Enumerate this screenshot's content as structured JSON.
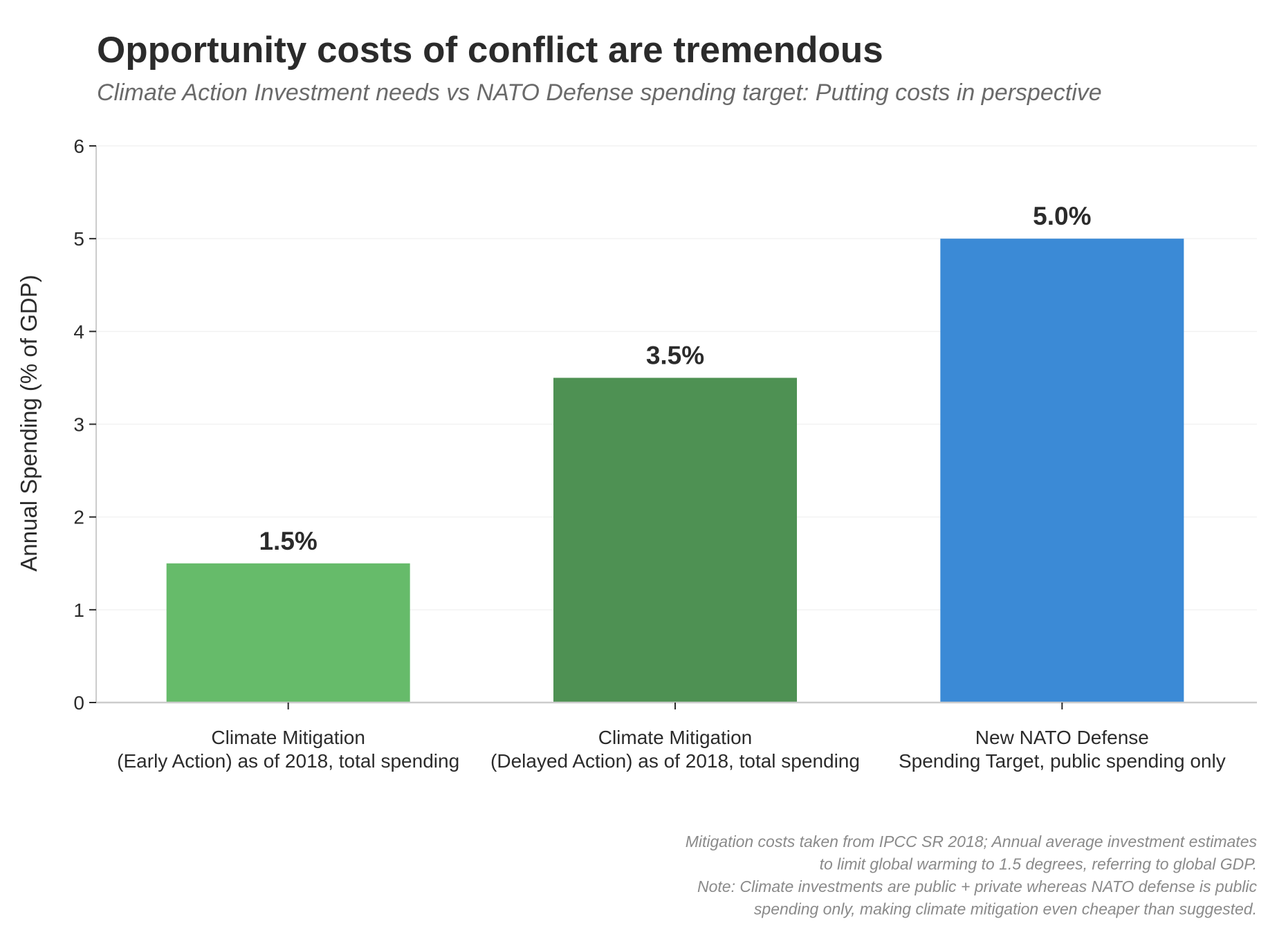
{
  "chart_data": {
    "type": "bar",
    "title": "Opportunity costs of conflict are tremendous",
    "subtitle": "Climate Action Investment needs vs NATO Defense spending target: Putting costs in perspective",
    "xlabel": "",
    "ylabel": "Annual Spending (% of GDP)",
    "ylim": [
      0,
      6
    ],
    "yticks": [
      0,
      1,
      2,
      3,
      4,
      5,
      6
    ],
    "grid": true,
    "categories": [
      [
        "Climate Mitigation",
        "(Early Action) as of 2018, total spending"
      ],
      [
        "Climate Mitigation",
        "(Delayed Action) as of 2018, total spending"
      ],
      [
        "New NATO Defense",
        "Spending Target, public spending only"
      ]
    ],
    "values": [
      1.5,
      3.5,
      5.0
    ],
    "data_labels": [
      "1.5%",
      "3.5%",
      "5.0%"
    ],
    "colors": [
      "#66bb6a",
      "#4e9153",
      "#3b8ad6"
    ],
    "footnote": [
      "Mitigation costs taken from IPCC SR 2018; Annual average investment estimates",
      "to limit global warming to 1.5 degrees, referring to global GDP.",
      "Note: Climate investments are public + private whereas NATO defense is public",
      "spending only, making climate mitigation even cheaper than suggested."
    ]
  },
  "colors": {
    "text": "#2b2b2b",
    "subtitle": "#6a6a6a",
    "footnote": "#8a8a8a",
    "axis": "#cccccc",
    "grid": "#f2f2f2"
  }
}
